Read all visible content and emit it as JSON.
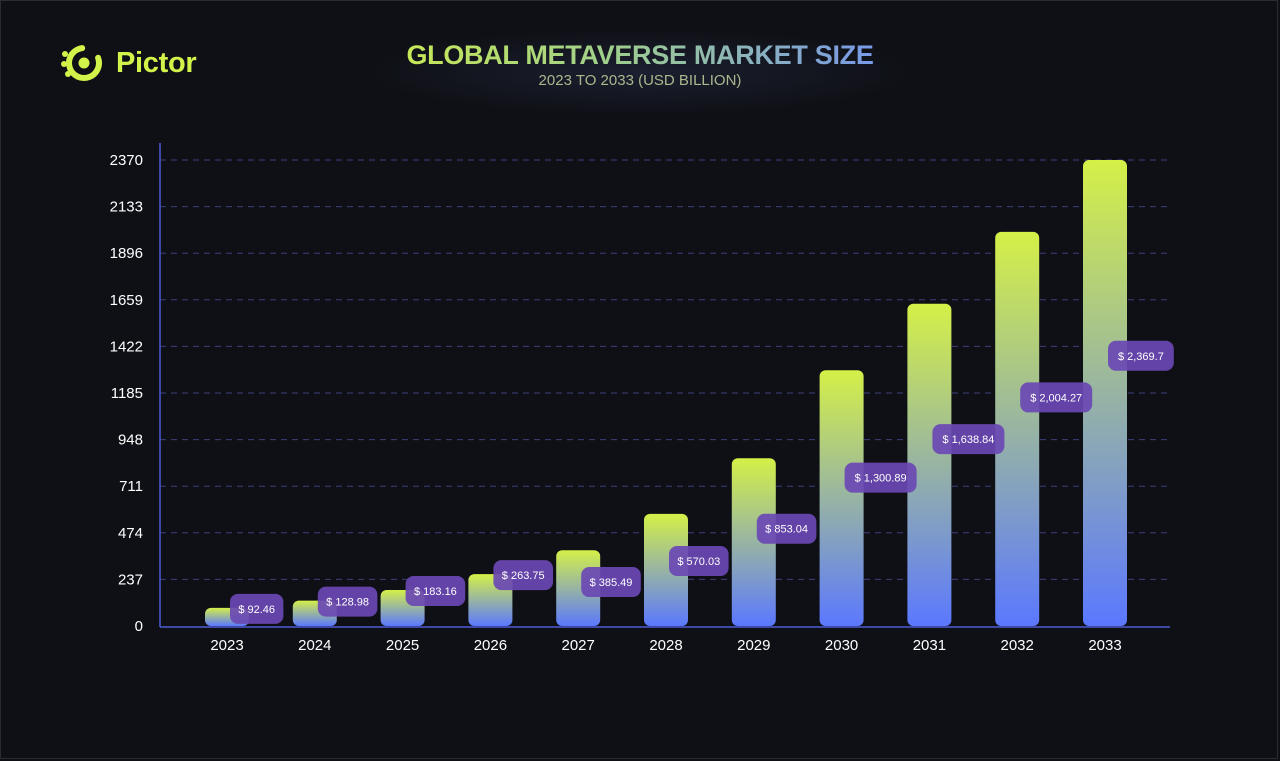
{
  "brand": {
    "name": "Pictor",
    "icon": "pictor-logo-icon",
    "color": "#d2f34a"
  },
  "colors": {
    "background": "#0f1016",
    "bar_top": "#d4f047",
    "bar_bottom": "#5b78ff",
    "label_bg": "#6a48b4",
    "grid": "#3b3f7a"
  },
  "chart_data": {
    "type": "bar",
    "title": "GLOBAL METAVERSE MARKET SIZE",
    "subtitle": "2023 TO 2033 (USD BILLION)",
    "xlabel": "",
    "ylabel": "",
    "categories": [
      "2023",
      "2024",
      "2025",
      "2026",
      "2027",
      "2028",
      "2029",
      "2030",
      "2031",
      "2032",
      "2033"
    ],
    "values": [
      92.46,
      128.98,
      183.16,
      263.75,
      385.49,
      570.03,
      853.04,
      1300.89,
      1638.84,
      2004.27,
      2369.7
    ],
    "value_labels": [
      "$ 92.46",
      "$ 128.98",
      "$ 183.16",
      "$ 263.75",
      "$ 385.49",
      "$ 570.03",
      "$ 853.04",
      "$ 1,300.89",
      "$ 1,638.84",
      "$ 2,004.27",
      "$ 2,369.7"
    ],
    "yticks": [
      "0",
      "237",
      "474",
      "711",
      "948",
      "1185",
      "1422",
      "1659",
      "1896",
      "2133",
      "2370"
    ],
    "ylim": [
      0,
      2370
    ],
    "grid": true,
    "legend": "none"
  }
}
